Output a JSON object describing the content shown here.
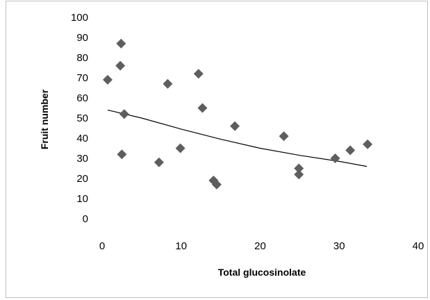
{
  "chart_data": {
    "type": "scatter",
    "title": "",
    "xlabel": "Total glucosinolate",
    "ylabel": "Fruit number",
    "xlim": [
      0,
      40
    ],
    "ylim": [
      0,
      100
    ],
    "x_ticks": [
      "0",
      "10",
      "20",
      "30",
      "40"
    ],
    "y_ticks": [
      "0",
      "10",
      "20",
      "30",
      "40",
      "50",
      "60",
      "70",
      "80",
      "90",
      "100"
    ],
    "grid": false,
    "legend": "none",
    "marker": "diamond",
    "marker_color": "#5e5e5e",
    "trendline_color": "#000000",
    "series": [
      {
        "points": [
          {
            "x": 0.7,
            "y": 69
          },
          {
            "x": 2.4,
            "y": 87
          },
          {
            "x": 2.3,
            "y": 76
          },
          {
            "x": 2.8,
            "y": 52
          },
          {
            "x": 2.5,
            "y": 32
          },
          {
            "x": 7.2,
            "y": 28
          },
          {
            "x": 8.3,
            "y": 67
          },
          {
            "x": 9.9,
            "y": 35
          },
          {
            "x": 12.2,
            "y": 72
          },
          {
            "x": 12.7,
            "y": 55
          },
          {
            "x": 14.1,
            "y": 19
          },
          {
            "x": 14.5,
            "y": 17
          },
          {
            "x": 16.8,
            "y": 46
          },
          {
            "x": 23.0,
            "y": 41
          },
          {
            "x": 24.9,
            "y": 25
          },
          {
            "x": 24.9,
            "y": 22
          },
          {
            "x": 29.5,
            "y": 30
          },
          {
            "x": 31.4,
            "y": 34
          },
          {
            "x": 33.6,
            "y": 37
          }
        ]
      }
    ],
    "trendline": {
      "type": "exponential",
      "points": [
        {
          "x": 0.7,
          "y": 54
        },
        {
          "x": 5,
          "y": 50
        },
        {
          "x": 10,
          "y": 44.5
        },
        {
          "x": 15,
          "y": 39.5
        },
        {
          "x": 20,
          "y": 35
        },
        {
          "x": 25,
          "y": 31.5
        },
        {
          "x": 30,
          "y": 28.5
        },
        {
          "x": 33.5,
          "y": 26
        }
      ]
    }
  }
}
